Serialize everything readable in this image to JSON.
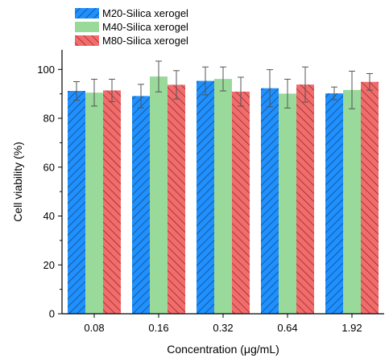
{
  "chart_data": {
    "type": "bar",
    "title": "",
    "xlabel": "Concentration (μg/mL)",
    "ylabel": "Cell viability (%)",
    "ylim": [
      0,
      108
    ],
    "yticks": [
      0,
      20,
      40,
      60,
      80,
      100
    ],
    "categories": [
      "0.08",
      "0.16",
      "0.32",
      "0.64",
      "1.92"
    ],
    "legend_position": "top-left",
    "grid": false,
    "series": [
      {
        "name": "M20-Silica xerogel",
        "values": [
          91.2,
          89.1,
          95.3,
          92.3,
          90.2
        ],
        "errors": [
          3.8,
          4.8,
          5.7,
          7.6,
          2.6
        ],
        "color": "#1e90ff",
        "hatch": "diagonal-forward"
      },
      {
        "name": "M40-Silica xerogel",
        "values": [
          90.5,
          97.1,
          96.1,
          90.1,
          91.6
        ],
        "errors": [
          5.5,
          6.3,
          4.9,
          5.9,
          7.7
        ],
        "color": "#99d99a",
        "hatch": "none"
      },
      {
        "name": "M80-Silica xerogel",
        "values": [
          91.4,
          93.7,
          90.9,
          93.8,
          94.9
        ],
        "errors": [
          4.6,
          5.8,
          5.9,
          7.2,
          3.4
        ],
        "color": "#f26c6c",
        "hatch": "diagonal-back"
      }
    ]
  }
}
